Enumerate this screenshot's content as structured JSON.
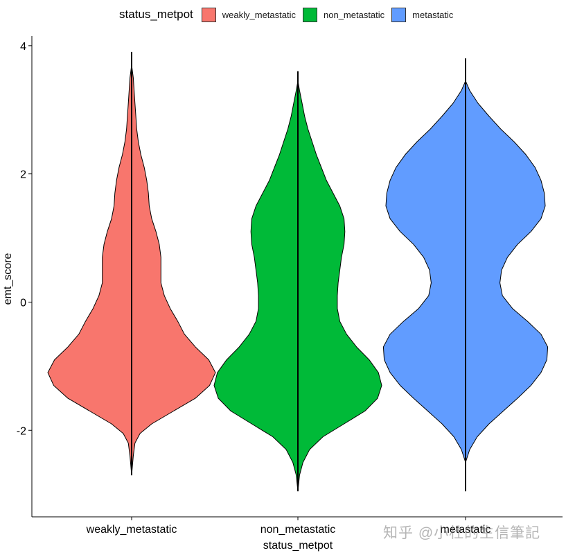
{
  "legend": {
    "title": "status_metpot",
    "items": [
      {
        "label": "weakly_metastatic",
        "color": "#F8766D"
      },
      {
        "label": "non_metastatic",
        "color": "#00BA38"
      },
      {
        "label": "metastatic",
        "color": "#619CFF"
      }
    ]
  },
  "watermark": "知乎 @小杜的生信筆記",
  "chart_data": {
    "type": "violin",
    "xlabel": "status_metpot",
    "ylabel": "emt_score",
    "ylim": [
      -3.35,
      4.15
    ],
    "yticks": [
      -2,
      0,
      2,
      4
    ],
    "ytick_labels": [
      "-2",
      "0",
      "2",
      "4"
    ],
    "categories": [
      "weakly_metastatic",
      "non_metastatic",
      "metastatic"
    ],
    "grid": false,
    "legend_position": "top",
    "series": [
      {
        "category": "weakly_metastatic",
        "color": "#F8766D",
        "y_min": -2.7,
        "y_max": 3.9,
        "density": [
          [
            -2.7,
            0.0
          ],
          [
            -2.4,
            0.02
          ],
          [
            -2.2,
            0.04
          ],
          [
            -2.05,
            0.1
          ],
          [
            -1.9,
            0.24
          ],
          [
            -1.7,
            0.5
          ],
          [
            -1.5,
            0.76
          ],
          [
            -1.3,
            0.93
          ],
          [
            -1.1,
            1.0
          ],
          [
            -0.9,
            0.92
          ],
          [
            -0.7,
            0.76
          ],
          [
            -0.5,
            0.63
          ],
          [
            -0.3,
            0.55
          ],
          [
            -0.1,
            0.46
          ],
          [
            0.1,
            0.39
          ],
          [
            0.3,
            0.35
          ],
          [
            0.5,
            0.35
          ],
          [
            0.7,
            0.35
          ],
          [
            0.9,
            0.33
          ],
          [
            1.1,
            0.29
          ],
          [
            1.3,
            0.24
          ],
          [
            1.5,
            0.21
          ],
          [
            1.7,
            0.2
          ],
          [
            1.9,
            0.18
          ],
          [
            2.1,
            0.15
          ],
          [
            2.3,
            0.11
          ],
          [
            2.5,
            0.08
          ],
          [
            2.7,
            0.06
          ],
          [
            2.9,
            0.05
          ],
          [
            3.1,
            0.04
          ],
          [
            3.3,
            0.03
          ],
          [
            3.5,
            0.02
          ],
          [
            3.7,
            0.0
          ],
          [
            3.9,
            0.0
          ]
        ]
      },
      {
        "category": "non_metastatic",
        "color": "#00BA38",
        "y_min": -2.95,
        "y_max": 3.6,
        "density": [
          [
            -2.95,
            0.0
          ],
          [
            -2.7,
            0.02
          ],
          [
            -2.5,
            0.06
          ],
          [
            -2.3,
            0.14
          ],
          [
            -2.1,
            0.3
          ],
          [
            -1.9,
            0.55
          ],
          [
            -1.7,
            0.8
          ],
          [
            -1.5,
            0.95
          ],
          [
            -1.3,
            1.0
          ],
          [
            -1.1,
            0.96
          ],
          [
            -0.9,
            0.85
          ],
          [
            -0.7,
            0.7
          ],
          [
            -0.5,
            0.58
          ],
          [
            -0.3,
            0.5
          ],
          [
            -0.1,
            0.47
          ],
          [
            0.1,
            0.47
          ],
          [
            0.3,
            0.48
          ],
          [
            0.5,
            0.5
          ],
          [
            0.7,
            0.52
          ],
          [
            0.9,
            0.55
          ],
          [
            1.1,
            0.56
          ],
          [
            1.3,
            0.55
          ],
          [
            1.5,
            0.5
          ],
          [
            1.7,
            0.42
          ],
          [
            1.9,
            0.34
          ],
          [
            2.1,
            0.28
          ],
          [
            2.3,
            0.22
          ],
          [
            2.5,
            0.17
          ],
          [
            2.7,
            0.12
          ],
          [
            2.9,
            0.08
          ],
          [
            3.1,
            0.05
          ],
          [
            3.3,
            0.02
          ],
          [
            3.45,
            0.0
          ],
          [
            3.6,
            0.0
          ]
        ]
      },
      {
        "category": "metastatic",
        "color": "#619CFF",
        "y_min": -2.95,
        "y_max": 3.8,
        "density": [
          [
            -2.95,
            0.0
          ],
          [
            -2.5,
            0.0
          ],
          [
            -2.3,
            0.05
          ],
          [
            -2.1,
            0.14
          ],
          [
            -1.9,
            0.28
          ],
          [
            -1.7,
            0.45
          ],
          [
            -1.5,
            0.62
          ],
          [
            -1.3,
            0.78
          ],
          [
            -1.1,
            0.9
          ],
          [
            -0.9,
            0.97
          ],
          [
            -0.7,
            0.98
          ],
          [
            -0.5,
            0.9
          ],
          [
            -0.3,
            0.74
          ],
          [
            -0.1,
            0.56
          ],
          [
            0.1,
            0.44
          ],
          [
            0.3,
            0.41
          ],
          [
            0.5,
            0.43
          ],
          [
            0.7,
            0.5
          ],
          [
            0.9,
            0.62
          ],
          [
            1.1,
            0.78
          ],
          [
            1.3,
            0.9
          ],
          [
            1.5,
            0.95
          ],
          [
            1.7,
            0.94
          ],
          [
            1.9,
            0.9
          ],
          [
            2.1,
            0.83
          ],
          [
            2.3,
            0.72
          ],
          [
            2.5,
            0.58
          ],
          [
            2.7,
            0.42
          ],
          [
            2.9,
            0.28
          ],
          [
            3.1,
            0.15
          ],
          [
            3.3,
            0.05
          ],
          [
            3.45,
            0.0
          ],
          [
            3.8,
            0.0
          ]
        ]
      }
    ]
  }
}
